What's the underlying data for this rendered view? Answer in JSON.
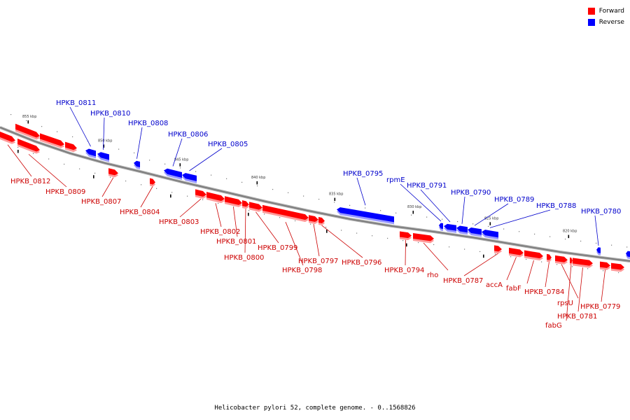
{
  "legend": [
    {
      "label": "Forward",
      "color": "#ff0000"
    },
    {
      "label": "Reverse",
      "color": "#0000ff"
    }
  ],
  "caption": "Helicobacter pylori 52, complete genome. - 0..1568826",
  "colors": {
    "forward": "#ff0000",
    "reverse": "#0000ff",
    "forward_label": "#cc0000",
    "reverse_label": "#0000cc",
    "backbone": "#888888"
  },
  "ticks": [
    "855 kbp",
    "850 kbp",
    "845 kbp",
    "840 kbp",
    "835 kbp",
    "830 kbp",
    "825 kbp",
    "820 kbp"
  ],
  "genes": [
    {
      "name": "HPKB_0812",
      "strand": "forward"
    },
    {
      "name": "HPKB_0811",
      "strand": "reverse"
    },
    {
      "name": "HPKB_0810",
      "strand": "reverse"
    },
    {
      "name": "HPKB_0809",
      "strand": "forward"
    },
    {
      "name": "HPKB_0808",
      "strand": "reverse"
    },
    {
      "name": "HPKB_0807",
      "strand": "forward"
    },
    {
      "name": "HPKB_0806",
      "strand": "reverse"
    },
    {
      "name": "HPKB_0805",
      "strand": "reverse"
    },
    {
      "name": "HPKB_0804",
      "strand": "forward"
    },
    {
      "name": "HPKB_0803",
      "strand": "forward"
    },
    {
      "name": "HPKB_0802",
      "strand": "forward"
    },
    {
      "name": "HPKB_0801",
      "strand": "forward"
    },
    {
      "name": "HPKB_0800",
      "strand": "forward"
    },
    {
      "name": "HPKB_0799",
      "strand": "forward"
    },
    {
      "name": "HPKB_0798",
      "strand": "forward"
    },
    {
      "name": "HPKB_0797",
      "strand": "forward"
    },
    {
      "name": "HPKB_0796",
      "strand": "forward"
    },
    {
      "name": "HPKB_0795",
      "strand": "reverse"
    },
    {
      "name": "rpmE",
      "strand": "reverse"
    },
    {
      "name": "HPKB_0794",
      "strand": "forward"
    },
    {
      "name": "rho",
      "strand": "forward"
    },
    {
      "name": "HPKB_0791",
      "strand": "reverse"
    },
    {
      "name": "HPKB_0790",
      "strand": "reverse"
    },
    {
      "name": "HPKB_0789",
      "strand": "reverse"
    },
    {
      "name": "HPKB_0788",
      "strand": "reverse"
    },
    {
      "name": "HPKB_0787",
      "strand": "forward"
    },
    {
      "name": "accA",
      "strand": "forward"
    },
    {
      "name": "fabF",
      "strand": "forward"
    },
    {
      "name": "HPKB_0784",
      "strand": "forward"
    },
    {
      "name": "fabG",
      "strand": "forward"
    },
    {
      "name": "rpsU",
      "strand": "forward"
    },
    {
      "name": "HPKB_0781",
      "strand": "forward"
    },
    {
      "name": "HPKB_0780",
      "strand": "reverse"
    },
    {
      "name": "HPKB_0779",
      "strand": "forward"
    }
  ]
}
